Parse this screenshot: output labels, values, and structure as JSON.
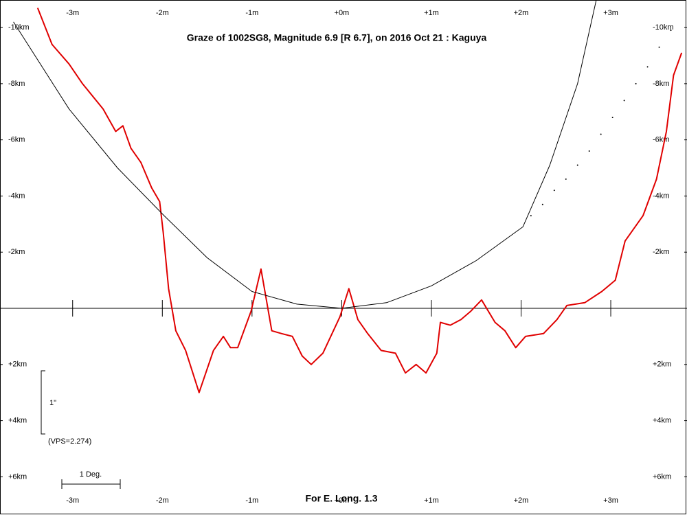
{
  "chart_data": {
    "type": "line",
    "title": "Graze of  1002SG8,  Magnitude 6.9 [R 6.7],  on 2016 Oct 21  :  Kaguya",
    "footer": "For E. Long. 1.3",
    "scale_label": "1\"",
    "vps_label": "(VPS=2.274)",
    "degree_label": "1 Deg.",
    "xlim": [
      -3.81,
      3.85
    ],
    "ylim": [
      -10.98,
      7.36
    ],
    "y_inverted": true,
    "xticks": [
      {
        "value": -3,
        "label": "-3m"
      },
      {
        "value": -2,
        "label": "-2m"
      },
      {
        "value": -1,
        "label": "-1m"
      },
      {
        "value": 0,
        "label": "+0m"
      },
      {
        "value": 1,
        "label": "+1m"
      },
      {
        "value": 2,
        "label": "+2m"
      },
      {
        "value": 3,
        "label": "+3m"
      }
    ],
    "yticks": [
      {
        "value": -10,
        "label": "-10km"
      },
      {
        "value": -8,
        "label": "-8km"
      },
      {
        "value": -6,
        "label": "-6km"
      },
      {
        "value": -4,
        "label": "-4km"
      },
      {
        "value": -2,
        "label": "-2km"
      },
      {
        "value": 2,
        "label": "+2km"
      },
      {
        "value": 4,
        "label": "+4km"
      },
      {
        "value": 6,
        "label": "+6km"
      }
    ],
    "series": [
      {
        "color": "#e00000",
        "line_width": 2,
        "line_style": "solid",
        "x": [
          -3.39,
          -3.23,
          -3.04,
          -2.89,
          -2.66,
          -2.52,
          -2.44,
          -2.35,
          -2.24,
          -2.12,
          -2.03,
          -1.99,
          -1.93,
          -1.85,
          -1.74,
          -1.59,
          -1.43,
          -1.32,
          -1.24,
          -1.16,
          -1.01,
          -0.9,
          -0.78,
          -0.67,
          -0.55,
          -0.44,
          -0.34,
          -0.21,
          -0.02,
          0.08,
          0.18,
          0.29,
          0.44,
          0.6,
          0.71,
          0.83,
          0.94,
          1.06,
          1.1,
          1.21,
          1.33,
          1.44,
          1.56,
          1.71,
          1.82,
          1.94,
          2.05,
          2.25,
          2.4,
          2.51,
          2.71,
          2.9,
          3.05,
          3.16,
          3.36,
          3.51,
          3.62,
          3.7,
          3.79
        ],
        "values": [
          -10.7,
          -9.4,
          -8.7,
          -8.0,
          -7.1,
          -6.3,
          -6.5,
          -5.7,
          -5.2,
          -4.3,
          -3.8,
          -2.7,
          -0.7,
          0.8,
          1.5,
          3.0,
          1.5,
          1.0,
          1.4,
          1.4,
          0.1,
          -1.4,
          0.8,
          0.9,
          1.0,
          1.7,
          2.0,
          1.6,
          0.3,
          -0.7,
          0.4,
          0.9,
          1.5,
          1.6,
          2.3,
          2.0,
          2.3,
          1.6,
          0.5,
          0.6,
          0.4,
          0.1,
          -0.3,
          0.5,
          0.8,
          1.4,
          1.0,
          0.9,
          0.4,
          -0.1,
          -0.2,
          -0.6,
          -1.0,
          -2.4,
          -3.3,
          -4.6,
          -6.3,
          -8.3,
          -9.1
        ]
      },
      {
        "color": "#000000",
        "line_width": 1,
        "line_style": "solid",
        "x": [
          -3.66,
          -3.04,
          -2.5,
          -1.98,
          -1.5,
          -1.0,
          -0.5,
          0,
          0.5,
          1.0,
          1.5,
          2.02,
          2.32,
          2.63,
          2.84
        ],
        "values": [
          -10.2,
          -7.1,
          -5.0,
          -3.3,
          -1.8,
          -0.6,
          -0.15,
          0,
          -0.2,
          -0.8,
          -1.7,
          -2.9,
          -5.1,
          -8.0,
          -11.0
        ]
      },
      {
        "color": "#000000",
        "line_width": 1,
        "line_style": "dotted",
        "x": [
          2.11,
          2.24,
          2.37,
          2.5,
          2.63,
          2.76,
          2.89,
          3.02,
          3.15,
          3.28,
          3.41,
          3.54,
          3.67
        ],
        "values": [
          -3.3,
          -3.7,
          -4.2,
          -4.6,
          -5.1,
          -5.6,
          -6.2,
          -6.8,
          -7.4,
          -8.0,
          -8.6,
          -9.3,
          -9.9
        ]
      }
    ]
  }
}
